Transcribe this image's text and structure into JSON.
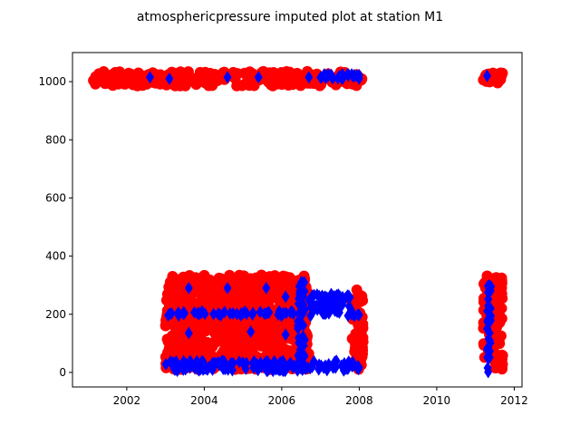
{
  "chart_data": {
    "type": "scatter",
    "title": "atmosphericpressure imputed plot at station M1",
    "xlabel": "",
    "ylabel": "",
    "xlim": [
      2000.6,
      2012.2
    ],
    "ylim": [
      -50,
      1100
    ],
    "x_ticks": [
      2002,
      2004,
      2006,
      2008,
      2010,
      2012
    ],
    "y_ticks": [
      0,
      200,
      400,
      600,
      800,
      1000
    ],
    "grid": false,
    "series": [
      {
        "color": "#ff0000",
        "marker": "circle",
        "clusters": [
          {
            "x_range": [
              2001.1,
              2008.1
            ],
            "y_range": [
              985,
              1035
            ]
          },
          {
            "x_range": [
              2011.2,
              2011.7
            ],
            "y_range": [
              995,
              1030
            ]
          },
          {
            "x_range": [
              2003.0,
              2006.7
            ],
            "y_range": [
              10,
              335
            ]
          },
          {
            "x_range": [
              2007.8,
              2008.1
            ],
            "y_range": [
              10,
              290
            ]
          },
          {
            "x_range": [
              2011.2,
              2011.7
            ],
            "y_range": [
              10,
              335
            ]
          }
        ]
      },
      {
        "color": "#0000ff",
        "marker": "diamond",
        "clusters": [
          {
            "x_range": [
              2003.0,
              2008.1
            ],
            "y_range": [
              195,
              210
            ]
          },
          {
            "x_range": [
              2003.0,
              2008.1
            ],
            "y_range": [
              5,
              40
            ]
          },
          {
            "x_range": [
              2006.7,
              2007.8
            ],
            "y_range": [
              200,
              270
            ]
          },
          {
            "x_range": [
              2006.4,
              2006.6
            ],
            "y_range": [
              20,
              320
            ]
          },
          {
            "x_range": [
              2007.0,
              2008.0
            ],
            "y_range": [
              1010,
              1025
            ]
          },
          {
            "x_range": [
              2011.3,
              2011.4
            ],
            "y_range": [
              0,
              300
            ]
          }
        ],
        "points": [
          {
            "x": 2002.6,
            "y": 1015
          },
          {
            "x": 2003.1,
            "y": 1010
          },
          {
            "x": 2004.6,
            "y": 1015
          },
          {
            "x": 2005.4,
            "y": 1015
          },
          {
            "x": 2006.7,
            "y": 1015
          },
          {
            "x": 2007.2,
            "y": 1025
          },
          {
            "x": 2011.3,
            "y": 1020
          },
          {
            "x": 2003.6,
            "y": 290
          },
          {
            "x": 2004.6,
            "y": 290
          },
          {
            "x": 2005.6,
            "y": 290
          },
          {
            "x": 2003.6,
            "y": 135
          },
          {
            "x": 2005.2,
            "y": 140
          },
          {
            "x": 2006.1,
            "y": 130
          },
          {
            "x": 2006.1,
            "y": 260
          },
          {
            "x": 2011.3,
            "y": 80
          },
          {
            "x": 2011.3,
            "y": 150
          },
          {
            "x": 2011.4,
            "y": 295
          }
        ]
      }
    ]
  }
}
